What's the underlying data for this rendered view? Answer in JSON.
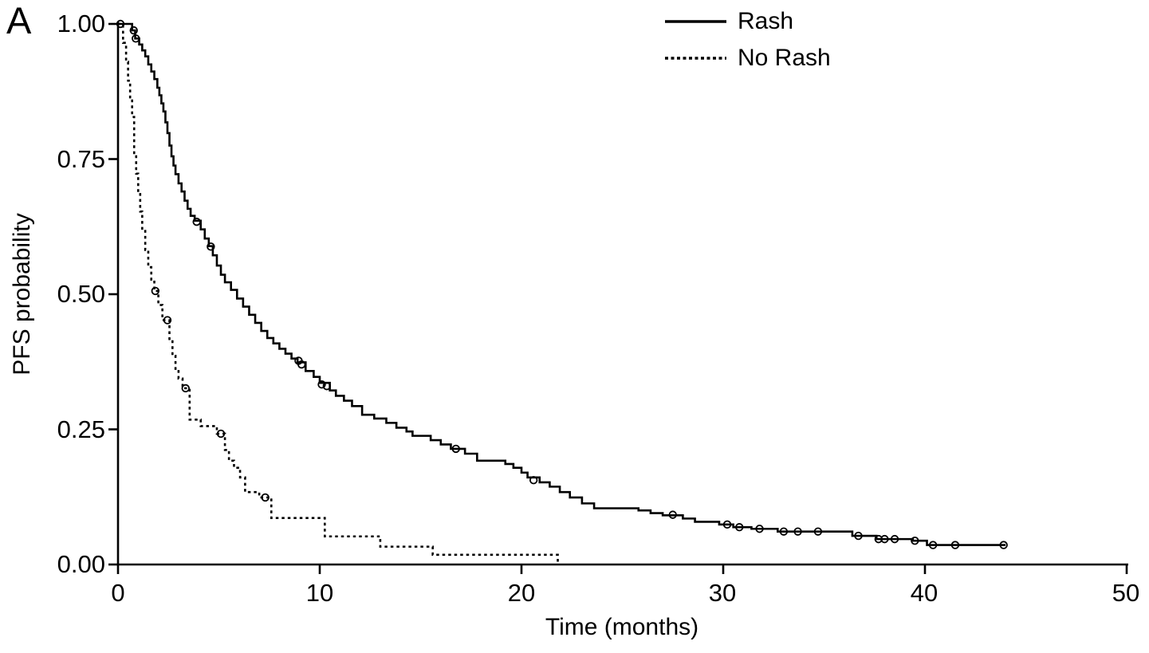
{
  "chart_data": {
    "type": "line",
    "subtype": "kaplan-meier-step",
    "panel_label": "A",
    "xlabel": "Time (months)",
    "ylabel": "PFS probability",
    "xlim": [
      0,
      50
    ],
    "ylim": [
      0,
      1
    ],
    "x_ticks": [
      0,
      10,
      20,
      30,
      40,
      50
    ],
    "x_tick_labels": [
      "0",
      "10",
      "20",
      "30",
      "40",
      "50"
    ],
    "y_ticks": [
      0,
      0.25,
      0.5,
      0.75,
      1.0
    ],
    "y_tick_labels": [
      "0.00",
      "0.25",
      "0.50",
      "0.75",
      "1.00"
    ],
    "grid": false,
    "legend_position": "top-right-inside",
    "line_color": "#000000",
    "background_color": "#ffffff",
    "series": [
      {
        "name": "Rash",
        "line_style": "solid",
        "color": "#000000",
        "points": [
          [
            0,
            1.0
          ],
          [
            0.7,
            0.988
          ],
          [
            0.85,
            0.973
          ],
          [
            1.05,
            0.962
          ],
          [
            1.2,
            0.951
          ],
          [
            1.35,
            0.94
          ],
          [
            1.5,
            0.925
          ],
          [
            1.65,
            0.912
          ],
          [
            1.8,
            0.898
          ],
          [
            1.95,
            0.882
          ],
          [
            2.05,
            0.868
          ],
          [
            2.15,
            0.853
          ],
          [
            2.25,
            0.838
          ],
          [
            2.35,
            0.818
          ],
          [
            2.45,
            0.798
          ],
          [
            2.55,
            0.775
          ],
          [
            2.65,
            0.755
          ],
          [
            2.75,
            0.738
          ],
          [
            2.85,
            0.722
          ],
          [
            3.0,
            0.705
          ],
          [
            3.15,
            0.69
          ],
          [
            3.3,
            0.673
          ],
          [
            3.45,
            0.658
          ],
          [
            3.6,
            0.645
          ],
          [
            3.8,
            0.636
          ],
          [
            4.1,
            0.62
          ],
          [
            4.3,
            0.603
          ],
          [
            4.5,
            0.589
          ],
          [
            4.7,
            0.572
          ],
          [
            4.9,
            0.553
          ],
          [
            5.1,
            0.536
          ],
          [
            5.3,
            0.522
          ],
          [
            5.6,
            0.508
          ],
          [
            5.9,
            0.492
          ],
          [
            6.2,
            0.477
          ],
          [
            6.5,
            0.462
          ],
          [
            6.8,
            0.447
          ],
          [
            7.1,
            0.432
          ],
          [
            7.4,
            0.419
          ],
          [
            7.7,
            0.409
          ],
          [
            8.0,
            0.399
          ],
          [
            8.3,
            0.39
          ],
          [
            8.6,
            0.381
          ],
          [
            8.9,
            0.374
          ],
          [
            9.3,
            0.358
          ],
          [
            9.7,
            0.347
          ],
          [
            10.0,
            0.336
          ],
          [
            10.5,
            0.322
          ],
          [
            10.8,
            0.312
          ],
          [
            11.2,
            0.303
          ],
          [
            11.6,
            0.293
          ],
          [
            12.1,
            0.277
          ],
          [
            12.7,
            0.27
          ],
          [
            13.3,
            0.262
          ],
          [
            13.8,
            0.253
          ],
          [
            14.3,
            0.246
          ],
          [
            14.6,
            0.238
          ],
          [
            15.5,
            0.23
          ],
          [
            16.0,
            0.222
          ],
          [
            16.5,
            0.214
          ],
          [
            17.2,
            0.205
          ],
          [
            17.8,
            0.192
          ],
          [
            19.2,
            0.186
          ],
          [
            19.6,
            0.179
          ],
          [
            20.0,
            0.17
          ],
          [
            20.3,
            0.161
          ],
          [
            20.9,
            0.152
          ],
          [
            21.4,
            0.144
          ],
          [
            21.9,
            0.134
          ],
          [
            22.4,
            0.124
          ],
          [
            23.0,
            0.113
          ],
          [
            23.6,
            0.104
          ],
          [
            25.8,
            0.1
          ],
          [
            26.4,
            0.095
          ],
          [
            27.0,
            0.091
          ],
          [
            28.0,
            0.085
          ],
          [
            28.6,
            0.079
          ],
          [
            29.8,
            0.074
          ],
          [
            30.5,
            0.069
          ],
          [
            31.4,
            0.066
          ],
          [
            32.7,
            0.061
          ],
          [
            36.4,
            0.053
          ],
          [
            37.6,
            0.047
          ],
          [
            39.4,
            0.044
          ],
          [
            40.1,
            0.036
          ],
          [
            44.0,
            0.036
          ]
        ],
        "censor_marks": [
          [
            0.12,
            1.0
          ],
          [
            0.78,
            0.988
          ],
          [
            0.88,
            0.973
          ],
          [
            3.9,
            0.634
          ],
          [
            4.6,
            0.588
          ],
          [
            8.95,
            0.377
          ],
          [
            9.1,
            0.37
          ],
          [
            10.1,
            0.333
          ],
          [
            10.35,
            0.33
          ],
          [
            16.75,
            0.214
          ],
          [
            20.6,
            0.156
          ],
          [
            27.5,
            0.092
          ],
          [
            30.2,
            0.074
          ],
          [
            30.8,
            0.069
          ],
          [
            31.8,
            0.066
          ],
          [
            33.0,
            0.061
          ],
          [
            33.7,
            0.061
          ],
          [
            34.7,
            0.061
          ],
          [
            36.7,
            0.053
          ],
          [
            37.7,
            0.047
          ],
          [
            38.0,
            0.047
          ],
          [
            38.5,
            0.047
          ],
          [
            39.5,
            0.044
          ],
          [
            40.4,
            0.036
          ],
          [
            41.5,
            0.036
          ],
          [
            43.9,
            0.036
          ]
        ]
      },
      {
        "name": "No Rash",
        "line_style": "dotted",
        "color": "#000000",
        "points": [
          [
            0,
            1.0
          ],
          [
            0.25,
            0.965
          ],
          [
            0.4,
            0.93
          ],
          [
            0.5,
            0.895
          ],
          [
            0.6,
            0.862
          ],
          [
            0.7,
            0.828
          ],
          [
            0.8,
            0.758
          ],
          [
            0.9,
            0.723
          ],
          [
            1.0,
            0.688
          ],
          [
            1.1,
            0.653
          ],
          [
            1.2,
            0.617
          ],
          [
            1.35,
            0.582
          ],
          [
            1.5,
            0.55
          ],
          [
            1.65,
            0.527
          ],
          [
            1.8,
            0.506
          ],
          [
            2.0,
            0.48
          ],
          [
            2.2,
            0.452
          ],
          [
            2.55,
            0.415
          ],
          [
            2.7,
            0.386
          ],
          [
            2.85,
            0.362
          ],
          [
            3.0,
            0.344
          ],
          [
            3.2,
            0.326
          ],
          [
            3.55,
            0.268
          ],
          [
            4.1,
            0.256
          ],
          [
            4.9,
            0.242
          ],
          [
            5.3,
            0.212
          ],
          [
            5.5,
            0.192
          ],
          [
            5.75,
            0.179
          ],
          [
            6.05,
            0.161
          ],
          [
            6.3,
            0.134
          ],
          [
            7.0,
            0.124
          ],
          [
            7.6,
            0.086
          ],
          [
            10.25,
            0.052
          ],
          [
            13.0,
            0.033
          ],
          [
            15.6,
            0.018
          ],
          [
            21.8,
            0.0
          ]
        ],
        "censor_marks": [
          [
            1.85,
            0.506
          ],
          [
            2.45,
            0.452
          ],
          [
            3.35,
            0.326
          ],
          [
            5.1,
            0.242
          ],
          [
            7.3,
            0.124
          ]
        ]
      }
    ]
  }
}
